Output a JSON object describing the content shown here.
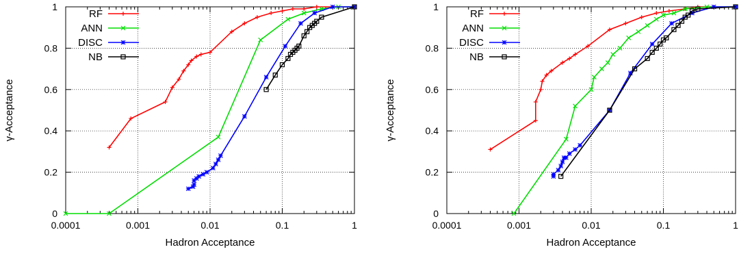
{
  "chart_data": [
    {
      "type": "line",
      "xscale": "log",
      "xlabel": "Hadron Acceptance",
      "ylabel": "γ-Acceptance",
      "xlim": [
        0.0001,
        1
      ],
      "ylim": [
        0,
        1
      ],
      "xticks": [
        "0.0001",
        "0.001",
        "0.01",
        "0.1",
        "1"
      ],
      "yticks": [
        "0",
        "0.2",
        "0.4",
        "0.6",
        "0.8",
        "1"
      ],
      "grid": true,
      "legend_position": "top-left",
      "series": [
        {
          "name": "RF",
          "color": "#ff0000",
          "marker": "plus",
          "x": [
            0.0004,
            0.0008,
            0.0024,
            0.003,
            0.0037,
            0.0043,
            0.005,
            0.0055,
            0.0065,
            0.0075,
            0.01,
            0.02,
            0.03,
            0.045,
            0.07,
            0.1,
            0.14,
            0.2,
            0.3,
            0.5,
            1.0
          ],
          "y": [
            0.32,
            0.46,
            0.54,
            0.61,
            0.65,
            0.69,
            0.72,
            0.74,
            0.76,
            0.77,
            0.78,
            0.88,
            0.92,
            0.95,
            0.97,
            0.98,
            0.99,
            0.99,
            1.0,
            1.0,
            1.0
          ]
        },
        {
          "name": "ANN",
          "color": "#00dd00",
          "marker": "cross",
          "x": [
            0.0001,
            0.0004,
            0.013,
            0.05,
            0.12,
            0.2,
            0.35,
            0.6,
            1.0
          ],
          "y": [
            0.0,
            0.0,
            0.37,
            0.84,
            0.94,
            0.97,
            0.99,
            1.0,
            1.0
          ]
        },
        {
          "name": "DISC",
          "color": "#0000ff",
          "marker": "star",
          "x": [
            0.005,
            0.0058,
            0.006,
            0.006,
            0.0065,
            0.007,
            0.008,
            0.009,
            0.011,
            0.012,
            0.013,
            0.014,
            0.03,
            0.06,
            0.11,
            0.18,
            0.28,
            0.5,
            1.0
          ],
          "y": [
            0.12,
            0.13,
            0.14,
            0.16,
            0.17,
            0.18,
            0.19,
            0.2,
            0.22,
            0.24,
            0.26,
            0.28,
            0.47,
            0.66,
            0.81,
            0.92,
            0.97,
            1.0,
            1.0
          ],
          "y_scan_note": ""
        },
        {
          "name": "NB",
          "color": "#000000",
          "marker": "box",
          "x": [
            0.06,
            0.08,
            0.1,
            0.12,
            0.13,
            0.14,
            0.15,
            0.16,
            0.17,
            0.2,
            0.22,
            0.24,
            0.26,
            0.28,
            0.3,
            0.35,
            1.0
          ],
          "y": [
            0.6,
            0.67,
            0.72,
            0.75,
            0.77,
            0.78,
            0.79,
            0.8,
            0.81,
            0.86,
            0.88,
            0.9,
            0.91,
            0.92,
            0.93,
            0.95,
            1.0
          ]
        }
      ]
    },
    {
      "type": "line",
      "xscale": "log",
      "xlabel": "Hadron Acceptance",
      "ylabel": "γ-Acceptance",
      "xlim": [
        0.0001,
        1
      ],
      "ylim": [
        0,
        1
      ],
      "xticks": [
        "0.0001",
        "0.001",
        "0.01",
        "0.1",
        "1"
      ],
      "yticks": [
        "0",
        "0.2",
        "0.4",
        "0.6",
        "0.8",
        "1"
      ],
      "grid": true,
      "legend_position": "top-left",
      "series": [
        {
          "name": "RF",
          "color": "#ff0000",
          "marker": "plus",
          "x": [
            0.0004,
            0.0017,
            0.0017,
            0.002,
            0.0021,
            0.0024,
            0.0028,
            0.004,
            0.005,
            0.006,
            0.009,
            0.018,
            0.03,
            0.05,
            0.08,
            0.12,
            0.2,
            0.3,
            0.5,
            1.0
          ],
          "y": [
            0.31,
            0.45,
            0.54,
            0.6,
            0.64,
            0.67,
            0.69,
            0.73,
            0.75,
            0.77,
            0.81,
            0.89,
            0.92,
            0.95,
            0.97,
            0.98,
            0.99,
            1.0,
            1.0,
            1.0
          ]
        },
        {
          "name": "ANN",
          "color": "#00dd00",
          "marker": "cross",
          "x": [
            0.00085,
            0.0045,
            0.006,
            0.01,
            0.011,
            0.014,
            0.017,
            0.02,
            0.025,
            0.033,
            0.045,
            0.06,
            0.08,
            0.1,
            0.14,
            0.2,
            0.4,
            1.0
          ],
          "y": [
            0.0,
            0.36,
            0.52,
            0.6,
            0.66,
            0.7,
            0.73,
            0.77,
            0.8,
            0.85,
            0.88,
            0.91,
            0.94,
            0.96,
            0.97,
            0.99,
            1.0,
            1.0
          ],
          "y_scan_note": ""
        },
        {
          "name": "DISC",
          "color": "#0000ff",
          "marker": "star",
          "x": [
            0.003,
            0.003,
            0.0035,
            0.0038,
            0.004,
            0.0042,
            0.0045,
            0.005,
            0.006,
            0.007,
            0.018,
            0.035,
            0.07,
            0.13,
            0.25,
            0.5,
            1.0
          ],
          "y": [
            0.18,
            0.19,
            0.21,
            0.23,
            0.25,
            0.27,
            0.27,
            0.29,
            0.31,
            0.33,
            0.5,
            0.68,
            0.82,
            0.92,
            0.97,
            1.0,
            1.0
          ]
        },
        {
          "name": "NB",
          "color": "#000000",
          "marker": "box",
          "x": [
            0.0038,
            0.018,
            0.04,
            0.06,
            0.07,
            0.08,
            0.09,
            0.1,
            0.11,
            0.14,
            0.16,
            0.18,
            0.2,
            0.22,
            0.25,
            0.3,
            1.0
          ],
          "y": [
            0.18,
            0.5,
            0.7,
            0.75,
            0.78,
            0.8,
            0.82,
            0.84,
            0.85,
            0.89,
            0.91,
            0.93,
            0.95,
            0.96,
            0.98,
            0.99,
            1.0
          ]
        }
      ]
    }
  ]
}
